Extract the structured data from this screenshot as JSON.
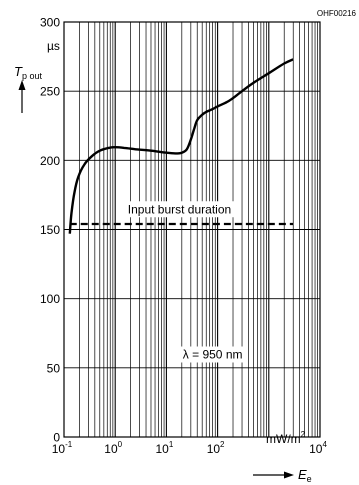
{
  "chart_data": {
    "type": "line",
    "figure_code": "OHF00216",
    "x_scale": "log",
    "xlim": [
      0.1,
      10000
    ],
    "ylim": [
      0,
      300
    ],
    "x_tick_labels": [
      {
        "value": 0.1,
        "base": "10",
        "exp": "-1"
      },
      {
        "value": 1,
        "base": "10",
        "exp": "0"
      },
      {
        "value": 10,
        "base": "10",
        "exp": "1"
      },
      {
        "value": 100,
        "base": "10",
        "exp": "2"
      },
      {
        "value": 10000,
        "base": "10",
        "exp": "4"
      }
    ],
    "y_ticks": [
      0,
      50,
      100,
      150,
      200,
      250,
      300
    ],
    "y_unit": "µs",
    "x_unit": {
      "base": "mW/m",
      "exp": "2"
    },
    "ylabel": {
      "symbol": "T",
      "subscript": "p out"
    },
    "xlabel": {
      "symbol": "E",
      "subscript": "e"
    },
    "grid": true,
    "series": [
      {
        "style": "solid",
        "x": [
          0.13,
          0.14,
          0.16,
          0.19,
          0.25,
          0.35,
          0.5,
          0.75,
          1.0,
          1.5,
          2.5,
          5,
          10,
          15,
          20,
          25,
          30,
          35,
          40,
          50,
          60,
          80,
          100,
          150,
          200,
          300,
          500,
          1000,
          2000,
          3000
        ],
        "y": [
          147,
          162,
          177,
          188,
          197,
          203,
          207,
          209,
          209.5,
          209,
          208,
          207,
          205.5,
          205,
          205.5,
          208,
          215,
          223,
          229,
          233,
          235,
          237,
          239,
          242,
          245,
          250,
          256,
          263,
          270,
          273
        ]
      },
      {
        "style": "dashed",
        "label": "Input burst duration",
        "x": [
          0.13,
          3000
        ],
        "y": [
          154,
          154
        ]
      }
    ],
    "annotations": [
      {
        "text": "Input burst duration",
        "x": 18,
        "y": 165
      },
      {
        "text": "λ = 950 nm",
        "x": 80,
        "y": 60
      }
    ]
  }
}
